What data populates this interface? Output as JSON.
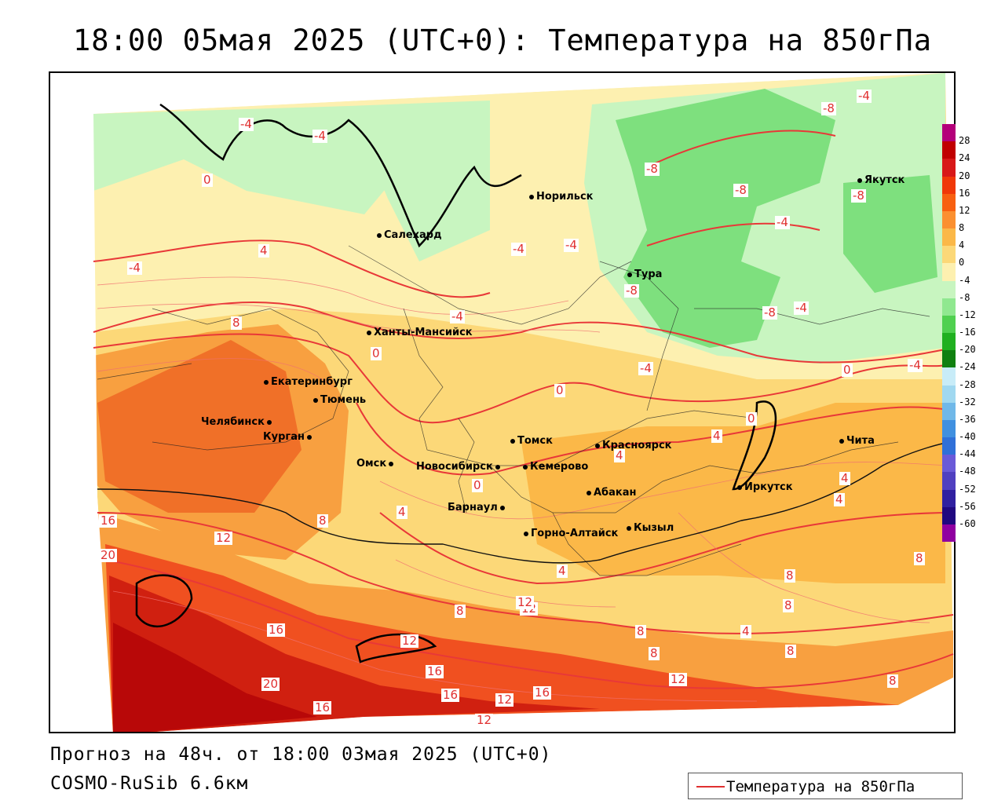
{
  "title": "18:00 05мая 2025 (UTC+0): Температура на 850гПа",
  "footer": {
    "forecast": "Прогноз на 48ч. от 18:00 03мая 2025 (UTC+0)",
    "model": "COSMO-RuSib 6.6км"
  },
  "legend": {
    "label": "Температура на 850гПа",
    "line_color": "#e03030"
  },
  "colorbar": {
    "ticks": [
      "28",
      "24",
      "20",
      "16",
      "12",
      "8",
      "4",
      "0",
      "-4",
      "-8",
      "-12",
      "-16",
      "-20",
      "-24",
      "-28",
      "-32",
      "-36",
      "-40",
      "-44",
      "-48",
      "-52",
      "-56",
      "-60"
    ],
    "colors": [
      "#b4007a",
      "#c00000",
      "#d81818",
      "#f03808",
      "#f86010",
      "#fb9030",
      "#fbb848",
      "#fcd878",
      "#fdf0b0",
      "#c8f5c0",
      "#90e890",
      "#50d050",
      "#20b020",
      "#108010",
      "#c8ecf8",
      "#a0d8f0",
      "#70b8e8",
      "#4090e0",
      "#3070d8",
      "#6a5ad8",
      "#5040c0",
      "#3020a0",
      "#200880",
      "#9000a0"
    ]
  },
  "cities": [
    {
      "name": "Норильск"
    },
    {
      "name": "Якутск"
    },
    {
      "name": "Салехард"
    },
    {
      "name": "Тура"
    },
    {
      "name": "Ханты-Мансийск"
    },
    {
      "name": "Екатеринбург"
    },
    {
      "name": "Тюмень"
    },
    {
      "name": "Челябинск"
    },
    {
      "name": "Курган"
    },
    {
      "name": "Омск"
    },
    {
      "name": "Томск"
    },
    {
      "name": "Красноярск"
    },
    {
      "name": "Новосибирск"
    },
    {
      "name": "Кемерово"
    },
    {
      "name": "Абакан"
    },
    {
      "name": "Барнаул"
    },
    {
      "name": "Иркутск"
    },
    {
      "name": "Чита"
    },
    {
      "name": "Горно-Алтайск"
    },
    {
      "name": "Кызыл"
    }
  ],
  "contour_labels": [
    "-4",
    "-4",
    "-8",
    "-4",
    "0",
    "-8",
    "-8",
    "-8",
    "-4",
    "-4",
    "-4",
    "-4",
    "4",
    "-4",
    "-8",
    "-8",
    "-4",
    "-4",
    "0",
    "0",
    "-4",
    "0",
    "0",
    "4",
    "4",
    "4",
    "4",
    "0",
    "16",
    "12",
    "8",
    "4",
    "20",
    "16",
    "8",
    "12",
    "12",
    "16",
    "16",
    "12",
    "16",
    "8",
    "12",
    "20",
    "16",
    "12",
    "8",
    "8",
    "4",
    "8",
    "8",
    "8",
    "4",
    "12",
    "8",
    "8"
  ]
}
